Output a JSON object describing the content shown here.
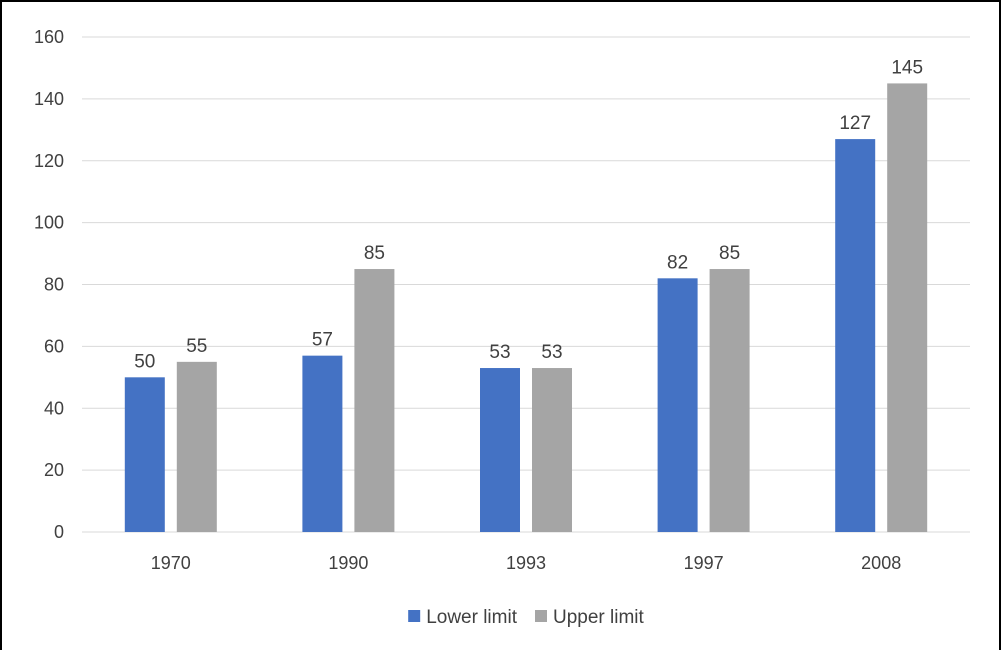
{
  "chart_data": {
    "type": "bar",
    "categories": [
      "1970",
      "1990",
      "1993",
      "1997",
      "2008"
    ],
    "series": [
      {
        "name": "Lower limit",
        "values": [
          50,
          57,
          53,
          82,
          127
        ],
        "color": "#4472C4"
      },
      {
        "name": "Upper limit",
        "values": [
          55,
          85,
          53,
          85,
          145
        ],
        "color": "#A5A5A5"
      }
    ],
    "ylim": [
      0,
      160
    ],
    "yticks": [
      0,
      20,
      40,
      60,
      80,
      100,
      120,
      140,
      160
    ],
    "grid": true,
    "data_labels": true,
    "legend_position": "bottom",
    "gridline_color": "#D9D9D9",
    "text_color": "#404040"
  }
}
